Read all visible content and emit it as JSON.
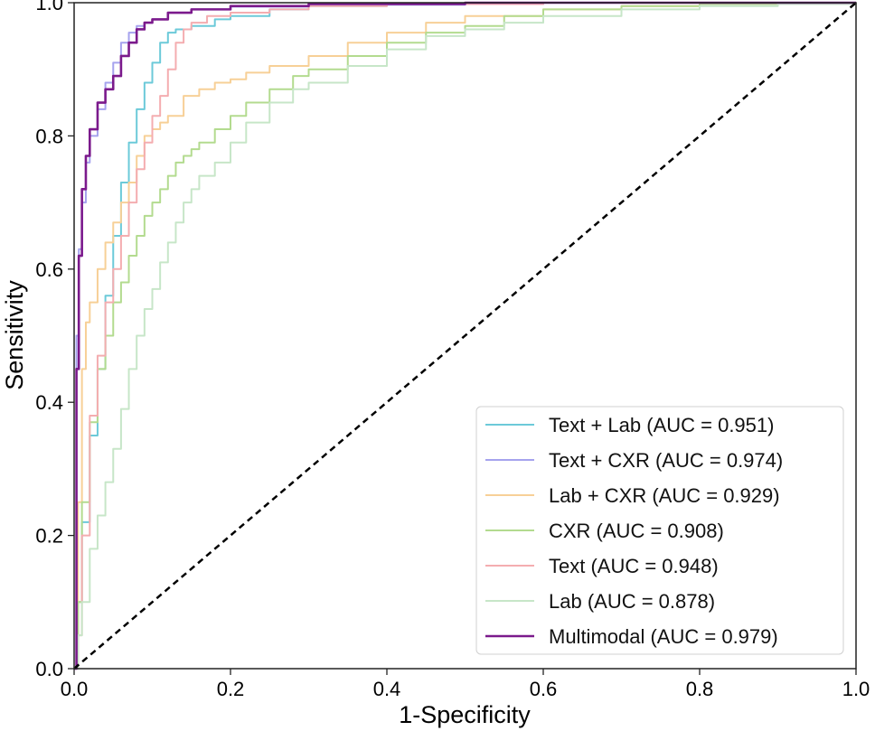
{
  "chart_data": {
    "type": "line",
    "title": "",
    "xlabel": "1-Specificity",
    "ylabel": "Sensitivity",
    "xlim": [
      0.0,
      1.0
    ],
    "ylim": [
      0.0,
      1.0
    ],
    "xticks": [
      "0.0",
      "0.2",
      "0.4",
      "0.6",
      "0.8",
      "1.0"
    ],
    "yticks": [
      "0.0",
      "0.2",
      "0.4",
      "0.6",
      "0.8",
      "1.0"
    ],
    "grid": false,
    "legend_position": "bottom-right",
    "diagonal": {
      "x": [
        0,
        1
      ],
      "y": [
        0,
        1
      ],
      "color": "#000000",
      "style": "dashed"
    },
    "series": [
      {
        "name": "Text + Lab (AUC = 0.951)",
        "color": "#6ccad9",
        "x": [
          0,
          0.005,
          0.01,
          0.02,
          0.03,
          0.04,
          0.05,
          0.06,
          0.07,
          0.08,
          0.09,
          0.1,
          0.11,
          0.12,
          0.13,
          0.15,
          0.18,
          0.2,
          0.25,
          0.3,
          0.4,
          0.6,
          0.8,
          1.0
        ],
        "y": [
          0,
          0.1,
          0.22,
          0.35,
          0.45,
          0.56,
          0.65,
          0.73,
          0.79,
          0.84,
          0.88,
          0.91,
          0.94,
          0.955,
          0.96,
          0.965,
          0.975,
          0.98,
          0.99,
          0.995,
          0.998,
          1.0,
          1.0,
          1.0
        ]
      },
      {
        "name": "Text + CXR (AUC = 0.974)",
        "color": "#a6a3ee",
        "x": [
          0,
          0.003,
          0.006,
          0.01,
          0.015,
          0.02,
          0.03,
          0.04,
          0.05,
          0.06,
          0.07,
          0.08,
          0.09,
          0.1,
          0.12,
          0.15,
          0.2,
          0.3,
          0.5,
          1.0
        ],
        "y": [
          0,
          0.5,
          0.63,
          0.7,
          0.76,
          0.8,
          0.84,
          0.88,
          0.91,
          0.94,
          0.955,
          0.965,
          0.97,
          0.975,
          0.985,
          0.99,
          0.994,
          0.997,
          1.0,
          1.0
        ]
      },
      {
        "name": "Lab + CXR (AUC = 0.929)",
        "color": "#f7d097",
        "x": [
          0,
          0.005,
          0.01,
          0.015,
          0.02,
          0.03,
          0.04,
          0.05,
          0.06,
          0.07,
          0.08,
          0.09,
          0.1,
          0.11,
          0.12,
          0.14,
          0.16,
          0.18,
          0.2,
          0.22,
          0.25,
          0.3,
          0.35,
          0.4,
          0.45,
          0.5,
          0.6,
          0.7,
          0.8,
          1.0
        ],
        "y": [
          0,
          0.25,
          0.45,
          0.52,
          0.55,
          0.6,
          0.64,
          0.67,
          0.7,
          0.73,
          0.77,
          0.8,
          0.81,
          0.82,
          0.83,
          0.86,
          0.87,
          0.88,
          0.885,
          0.895,
          0.905,
          0.92,
          0.94,
          0.955,
          0.97,
          0.98,
          0.99,
          0.995,
          0.998,
          1.0
        ]
      },
      {
        "name": "CXR (AUC = 0.908)",
        "color": "#b3db8f",
        "x": [
          0,
          0.005,
          0.01,
          0.02,
          0.03,
          0.04,
          0.05,
          0.06,
          0.07,
          0.08,
          0.09,
          0.1,
          0.11,
          0.12,
          0.13,
          0.14,
          0.15,
          0.16,
          0.18,
          0.2,
          0.22,
          0.25,
          0.28,
          0.3,
          0.35,
          0.4,
          0.45,
          0.5,
          0.55,
          0.6,
          0.7,
          0.8,
          1.0
        ],
        "y": [
          0,
          0.1,
          0.25,
          0.37,
          0.45,
          0.5,
          0.55,
          0.58,
          0.62,
          0.65,
          0.68,
          0.7,
          0.72,
          0.74,
          0.76,
          0.77,
          0.78,
          0.79,
          0.81,
          0.83,
          0.85,
          0.87,
          0.89,
          0.9,
          0.92,
          0.94,
          0.955,
          0.965,
          0.98,
          0.99,
          0.995,
          0.998,
          1.0
        ]
      },
      {
        "name": "Text (AUC = 0.948)",
        "color": "#f4adb0",
        "x": [
          0,
          0.005,
          0.01,
          0.02,
          0.03,
          0.04,
          0.05,
          0.06,
          0.07,
          0.08,
          0.09,
          0.1,
          0.11,
          0.12,
          0.13,
          0.14,
          0.15,
          0.17,
          0.2,
          0.25,
          0.3,
          0.4,
          0.6,
          1.0
        ],
        "y": [
          0,
          0.05,
          0.2,
          0.38,
          0.47,
          0.55,
          0.6,
          0.65,
          0.7,
          0.75,
          0.79,
          0.83,
          0.86,
          0.9,
          0.94,
          0.96,
          0.97,
          0.98,
          0.985,
          0.99,
          0.995,
          0.998,
          1.0,
          1.0
        ]
      },
      {
        "name": "Lab (AUC = 0.878)",
        "color": "#c7e6c8",
        "x": [
          0,
          0.005,
          0.01,
          0.02,
          0.03,
          0.04,
          0.05,
          0.06,
          0.07,
          0.08,
          0.09,
          0.1,
          0.11,
          0.12,
          0.13,
          0.14,
          0.15,
          0.16,
          0.18,
          0.2,
          0.22,
          0.25,
          0.28,
          0.3,
          0.35,
          0.4,
          0.45,
          0.5,
          0.55,
          0.6,
          0.7,
          0.8,
          0.9,
          1.0
        ],
        "y": [
          0,
          0.05,
          0.1,
          0.18,
          0.23,
          0.28,
          0.33,
          0.39,
          0.45,
          0.5,
          0.54,
          0.57,
          0.61,
          0.64,
          0.67,
          0.7,
          0.72,
          0.74,
          0.76,
          0.79,
          0.82,
          0.85,
          0.87,
          0.88,
          0.905,
          0.93,
          0.95,
          0.96,
          0.97,
          0.98,
          0.99,
          0.995,
          0.998,
          1.0
        ]
      },
      {
        "name": "Multimodal (AUC = 0.979)",
        "color": "#7b1a8c",
        "x": [
          0,
          0.003,
          0.006,
          0.01,
          0.015,
          0.02,
          0.03,
          0.04,
          0.05,
          0.06,
          0.07,
          0.08,
          0.09,
          0.1,
          0.12,
          0.15,
          0.2,
          0.3,
          0.5,
          1.0
        ],
        "y": [
          0,
          0.45,
          0.62,
          0.72,
          0.77,
          0.81,
          0.85,
          0.87,
          0.89,
          0.92,
          0.94,
          0.96,
          0.97,
          0.975,
          0.985,
          0.99,
          0.995,
          0.998,
          1.0,
          1.0
        ]
      }
    ]
  }
}
